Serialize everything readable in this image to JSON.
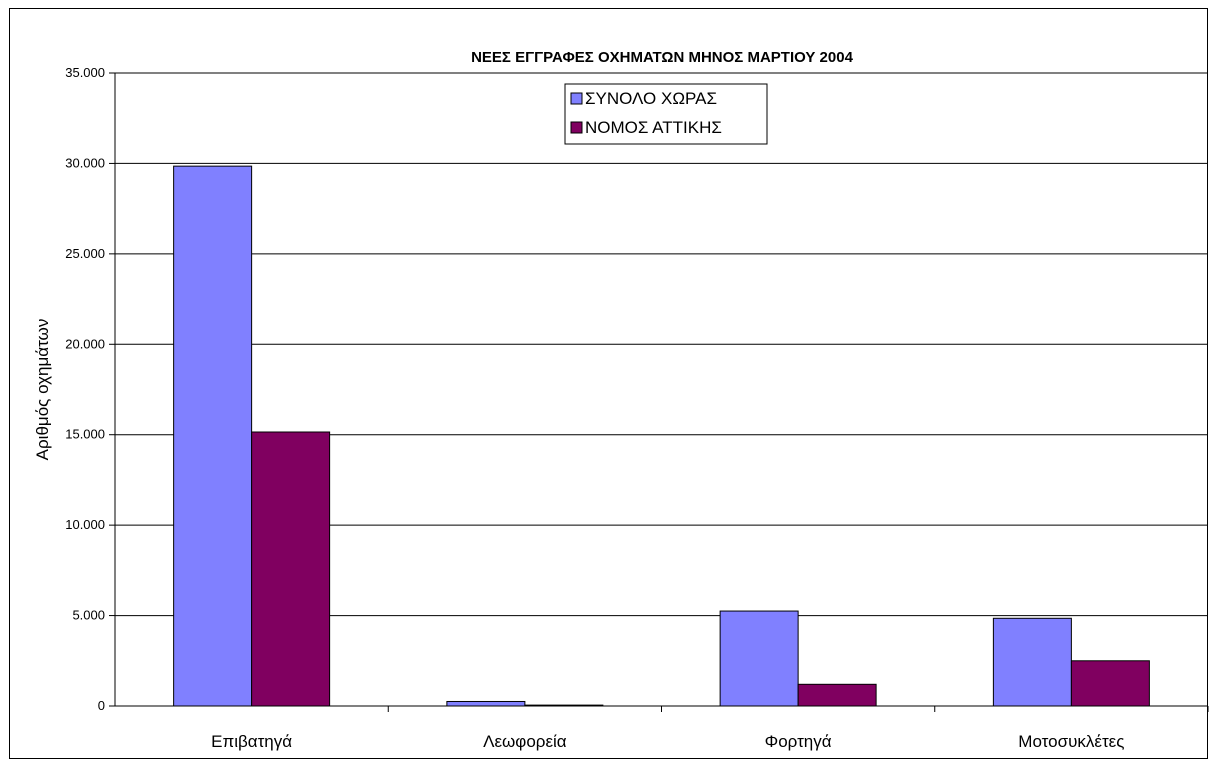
{
  "chart_data": {
    "type": "bar",
    "title": "ΝΕΕΣ ΕΓΓΡΑΦΕΣ ΟΧΗΜΑΤΩΝ ΜΗΝΟΣ ΜΑΡΤΙΟΥ 2004",
    "xlabel": "",
    "ylabel": "Αριθμός οχημάτων",
    "categories": [
      "Επιβατηγά",
      "Λεωφορεία",
      "Φορτηγά",
      "Μοτοσυκλέτες"
    ],
    "series": [
      {
        "name": "ΣΥΝΟΛΟ ΧΩΡΑΣ",
        "color": "#8080ff",
        "values": [
          29850,
          250,
          5250,
          4850
        ]
      },
      {
        "name": "ΝΟΜΟΣ ΑΤΤΙΚΗΣ",
        "color": "#800060",
        "values": [
          15150,
          50,
          1200,
          2500
        ]
      }
    ],
    "ylim": [
      0,
      35000
    ],
    "yticks": [
      0,
      5000,
      10000,
      15000,
      20000,
      25000,
      30000,
      35000
    ],
    "ytick_labels": [
      "0",
      "5.000",
      "10.000",
      "15.000",
      "20.000",
      "25.000",
      "30.000",
      "35.000"
    ],
    "grid": true,
    "legend_position": "top-center"
  }
}
